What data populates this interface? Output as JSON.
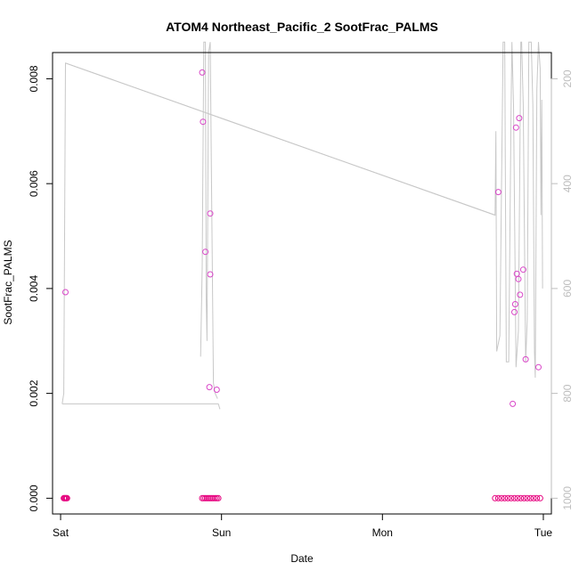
{
  "chart_data": {
    "type": "scatter",
    "title": "ATOM4 Northeast_Pacific_2 SootFrac_PALMS",
    "xlabel": "Date",
    "ylabel": "SootFrac_PALMS",
    "xlim_days": [
      -0.05,
      3.05
    ],
    "ylim": [
      -0.0003,
      0.0085
    ],
    "y2lim_reversed": [
      1030,
      150
    ],
    "x_ticks": [
      {
        "value": 0,
        "label": "Sat"
      },
      {
        "value": 1,
        "label": "Sun"
      },
      {
        "value": 2,
        "label": "Mon"
      },
      {
        "value": 3,
        "label": "Tue"
      }
    ],
    "y_ticks": [
      {
        "value": 0.0,
        "label": "0.000"
      },
      {
        "value": 0.002,
        "label": "0.002"
      },
      {
        "value": 0.004,
        "label": "0.004"
      },
      {
        "value": 0.006,
        "label": "0.006"
      },
      {
        "value": 0.008,
        "label": "0.008"
      }
    ],
    "y2_ticks": [
      {
        "value": 200,
        "label": "200"
      },
      {
        "value": 400,
        "label": "400"
      },
      {
        "value": 600,
        "label": "600"
      },
      {
        "value": 800,
        "label": "800"
      },
      {
        "value": 1000,
        "label": "1000"
      }
    ],
    "colors": {
      "points": "#e6007e",
      "points_light": "#d946c8",
      "pressure_line": "#c8c8c8"
    },
    "series": [
      {
        "points": [
          [
            0.02,
            0.0
          ],
          [
            0.025,
            0.0
          ],
          [
            0.03,
            0.0
          ],
          [
            0.035,
            0.0
          ],
          [
            0.04,
            0.0
          ],
          [
            0.03,
            0.00393
          ],
          [
            0.88,
            0.00812
          ],
          [
            0.885,
            0.00718
          ],
          [
            0.9,
            0.0047
          ],
          [
            0.93,
            0.00543
          ],
          [
            0.93,
            0.00427
          ],
          [
            0.925,
            0.00212
          ],
          [
            0.97,
            0.00207
          ],
          [
            0.88,
            0.0
          ],
          [
            0.89,
            0.0
          ],
          [
            0.9,
            0.0
          ],
          [
            0.91,
            0.0
          ],
          [
            0.92,
            0.0
          ],
          [
            0.93,
            0.0
          ],
          [
            0.94,
            0.0
          ],
          [
            0.95,
            0.0
          ],
          [
            0.96,
            0.0
          ],
          [
            0.97,
            0.0
          ],
          [
            0.98,
            0.0
          ],
          [
            2.72,
            0.00584
          ],
          [
            2.81,
            0.0018
          ],
          [
            2.82,
            0.00355
          ],
          [
            2.825,
            0.0037
          ],
          [
            2.83,
            0.00707
          ],
          [
            2.835,
            0.00428
          ],
          [
            2.845,
            0.00418
          ],
          [
            2.85,
            0.00725
          ],
          [
            2.855,
            0.00388
          ],
          [
            2.875,
            0.00436
          ],
          [
            2.89,
            0.00265
          ],
          [
            2.97,
            0.0025
          ],
          [
            2.7,
            0.0
          ],
          [
            2.72,
            0.0
          ],
          [
            2.74,
            0.0
          ],
          [
            2.76,
            0.0
          ],
          [
            2.78,
            0.0
          ],
          [
            2.8,
            0.0
          ],
          [
            2.82,
            0.0
          ],
          [
            2.84,
            0.0
          ],
          [
            2.86,
            0.0
          ],
          [
            2.88,
            0.0
          ],
          [
            2.9,
            0.0
          ],
          [
            2.92,
            0.0
          ],
          [
            2.94,
            0.0
          ],
          [
            2.96,
            0.0
          ],
          [
            2.98,
            0.0
          ]
        ]
      },
      {
        "y_axis": "right",
        "values": [
          [
            0.01,
            820
          ],
          [
            0.02,
            800
          ],
          [
            0.03,
            170
          ],
          [
            2.7,
            460
          ],
          [
            2.705,
            300
          ],
          [
            2.71,
            720
          ],
          [
            2.73,
            690
          ],
          [
            2.75,
            130
          ],
          [
            2.76,
            130
          ],
          [
            2.77,
            740
          ],
          [
            2.785,
            740
          ],
          [
            2.8,
            250
          ],
          [
            2.805,
            130
          ],
          [
            2.815,
            250
          ],
          [
            2.83,
            750
          ],
          [
            2.845,
            680
          ],
          [
            2.86,
            130
          ],
          [
            2.865,
            130
          ],
          [
            2.875,
            250
          ],
          [
            2.89,
            740
          ],
          [
            2.9,
            660
          ],
          [
            2.91,
            130
          ],
          [
            2.925,
            130
          ],
          [
            2.935,
            250
          ],
          [
            2.945,
            720
          ],
          [
            2.95,
            770
          ],
          [
            2.96,
            220
          ],
          [
            2.97,
            130
          ],
          [
            2.98,
            180
          ],
          [
            2.985,
            460
          ],
          [
            2.99,
            240
          ],
          [
            2.995,
            600
          ]
        ],
        "segments": [
          [
            [
              0.01,
              820
            ],
            [
              0.98,
              820
            ],
            [
              0.99,
              830
            ]
          ],
          [
            [
              0.87,
              730
            ],
            [
              0.88,
              560
            ],
            [
              0.89,
              130
            ],
            [
              0.9,
              130
            ],
            [
              0.905,
              620
            ],
            [
              0.91,
              700
            ],
            [
              0.92,
              150
            ],
            [
              0.93,
              130
            ],
            [
              0.94,
              460
            ],
            [
              0.95,
              780
            ],
            [
              0.96,
              800
            ],
            [
              0.975,
              810
            ]
          ],
          [
            [
              0.03,
              170
            ],
            [
              2.7,
              460
            ]
          ]
        ]
      }
    ]
  }
}
